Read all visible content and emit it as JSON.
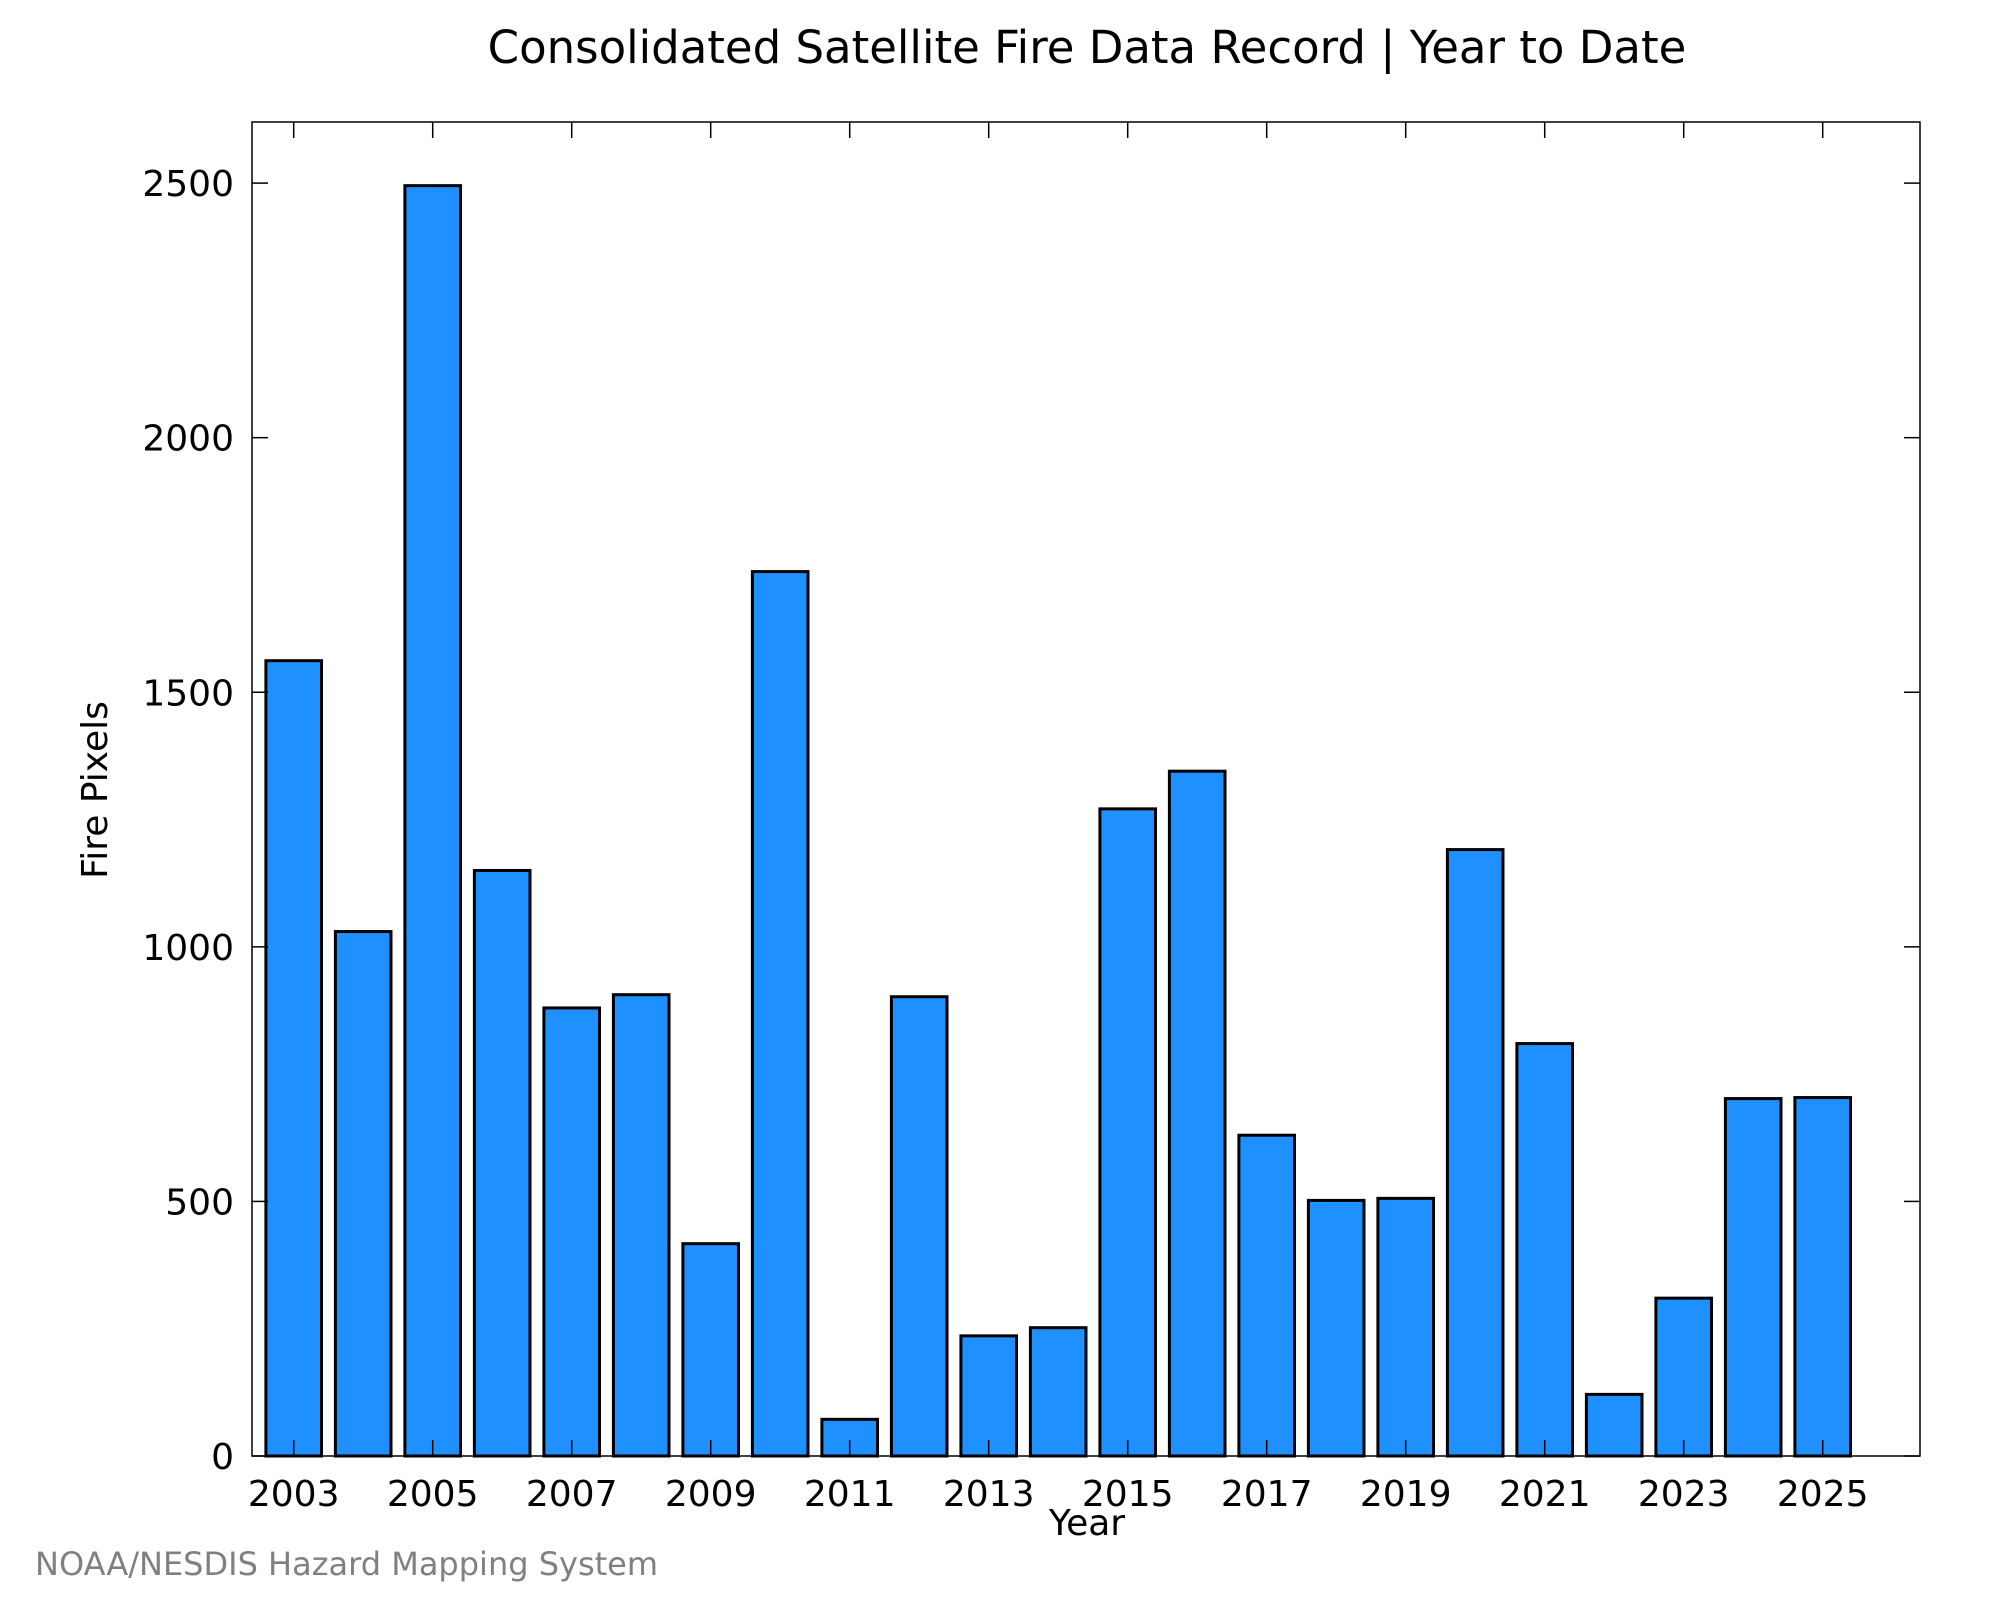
{
  "chart_data": {
    "type": "bar",
    "title": "Consolidated Satellite Fire Data Record | Year to Date",
    "xlabel": "Year",
    "ylabel": "Fire Pixels",
    "source": "NOAA/NESDIS Hazard Mapping System",
    "categories": [
      2003,
      2004,
      2005,
      2006,
      2007,
      2008,
      2009,
      2010,
      2011,
      2012,
      2013,
      2014,
      2015,
      2016,
      2017,
      2018,
      2019,
      2020,
      2021,
      2022,
      2023,
      2024,
      2025
    ],
    "values": [
      1562,
      1030,
      2495,
      1150,
      880,
      906,
      417,
      1737,
      72,
      902,
      236,
      252,
      1271,
      1345,
      630,
      502,
      506,
      1191,
      810,
      121,
      310,
      702,
      704
    ],
    "xticks": [
      "2003",
      "2005",
      "2007",
      "2009",
      "2011",
      "2013",
      "2015",
      "2017",
      "2019",
      "2021",
      "2023",
      "2025"
    ],
    "yticks": [
      0,
      500,
      1000,
      1500,
      2000,
      2500
    ],
    "ylim": [
      0,
      2620
    ],
    "xlim": [
      2002.4,
      2026.4
    ],
    "grid": false,
    "bar_color": "#1e90ff",
    "edge_color": "#000000"
  }
}
